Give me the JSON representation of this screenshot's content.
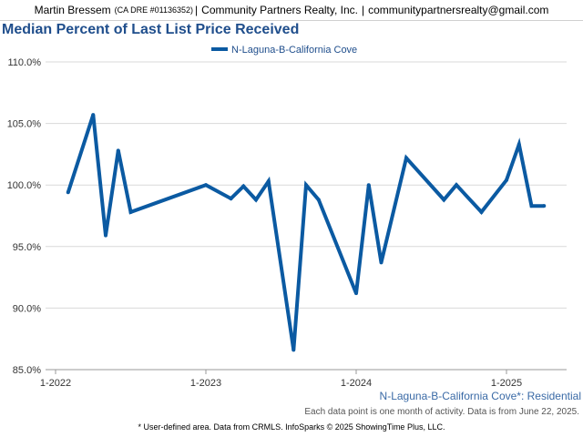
{
  "header": {
    "agent_name": "Martin Bressem",
    "license": "(CA DRE #01136352)",
    "separator": "|",
    "company": "Community Partners Realty, Inc.",
    "email": "communitypartnersrealty@gmail.com"
  },
  "footnote": "* User-defined area. Data from CRMLS. InfoSparks © 2025 ShowingTime Plus, LLC.",
  "colors": {
    "series": "#0b5aa2",
    "title": "#1f4e8c",
    "area_label": "#3a6aa6"
  },
  "chart_data": {
    "type": "line",
    "title": "Median Percent of Last List Price Received",
    "series": [
      {
        "name": "N-Laguna-B-California Cove",
        "points": [
          [
            "2022-02",
            99.4
          ],
          [
            "2022-04",
            105.7
          ],
          [
            "2022-05",
            95.9
          ],
          [
            "2022-06",
            102.8
          ],
          [
            "2022-07",
            97.8
          ],
          [
            "2023-01",
            100.0
          ],
          [
            "2023-03",
            98.9
          ],
          [
            "2023-04",
            99.9
          ],
          [
            "2023-05",
            98.8
          ],
          [
            "2023-06",
            100.3
          ],
          [
            "2023-08",
            86.6
          ],
          [
            "2023-09",
            100.0
          ],
          [
            "2023-10",
            98.8
          ],
          [
            "2024-01",
            91.2
          ],
          [
            "2024-02",
            100.0
          ],
          [
            "2024-03",
            93.7
          ],
          [
            "2024-05",
            102.2
          ],
          [
            "2024-08",
            98.8
          ],
          [
            "2024-09",
            100.0
          ],
          [
            "2024-11",
            97.8
          ],
          [
            "2025-01",
            100.4
          ],
          [
            "2025-02",
            103.3
          ],
          [
            "2025-03",
            98.3
          ],
          [
            "2025-04",
            98.3
          ]
        ]
      }
    ],
    "ylim": [
      85.0,
      110.0
    ],
    "y_ticks": [
      "110.0%",
      "105.0%",
      "100.0%",
      "95.0%",
      "90.0%",
      "85.0%"
    ],
    "y_tick_values": [
      110.0,
      105.0,
      100.0,
      95.0,
      90.0,
      85.0
    ],
    "x_ticks": [
      "1-2022",
      "1-2023",
      "1-2024",
      "1-2025"
    ],
    "x_tick_dates": [
      "2022-01",
      "2023-01",
      "2024-01",
      "2025-01"
    ],
    "xlim": [
      "2022-01",
      "2025-04"
    ],
    "grid": "horizontal",
    "legend_position": "top-center",
    "area_label": "N-Laguna-B-California Cove*: Residential",
    "data_note": "Each data point is one month of activity. Data is from June 22, 2025."
  }
}
